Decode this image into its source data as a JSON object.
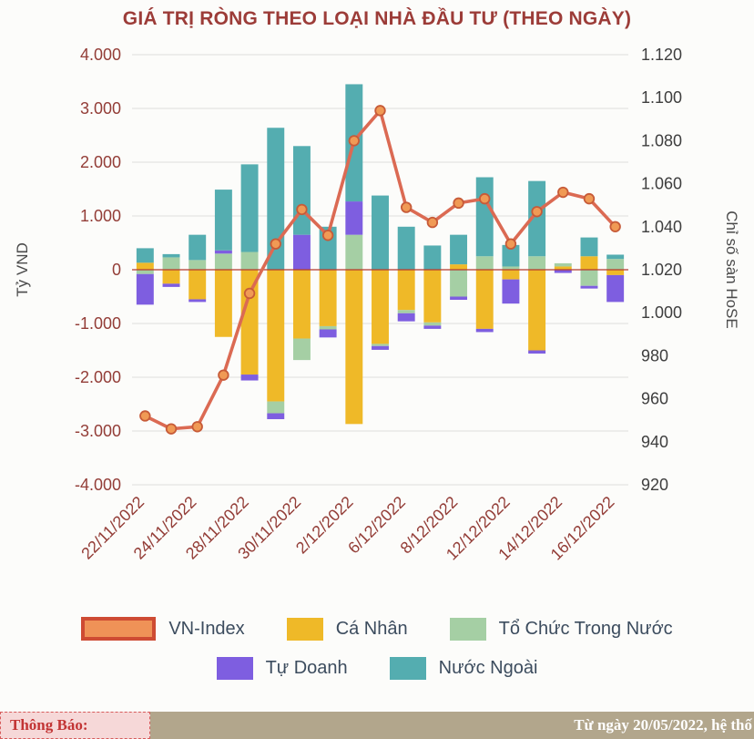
{
  "title": "GIÁ TRỊ RÒNG THEO LOẠI NHÀ ĐẦU TƯ (THEO NGÀY)",
  "legend": {
    "vn_index": "VN-Index",
    "ca_nhan": "Cá Nhân",
    "to_chuc": "Tổ Chức Trong Nước",
    "tu_doanh": "Tự Doanh",
    "nuoc_ngoai": "Nước Ngoài"
  },
  "ticker": {
    "label": "Thông Báo:",
    "message": "Từ ngày 20/05/2022, hệ thố",
    "label_bg": "#F6D8D8",
    "label_color": "#C23434",
    "message_bg": "#B2A68C",
    "message_color": "#FFFFFF"
  },
  "chart_data": {
    "type": "combo_stacked_bar_line",
    "title": "GIÁ TRỊ RÒNG THEO LOẠI NHÀ ĐẦU TƯ (THEO NGÀY)",
    "grid": true,
    "legend_position": "bottom",
    "dates": [
      "22/11/2022",
      "23/11/2022",
      "24/11/2022",
      "25/11/2022",
      "28/11/2022",
      "29/11/2022",
      "30/11/2022",
      "1/12/2022",
      "2/12/2022",
      "5/12/2022",
      "6/12/2022",
      "7/12/2022",
      "8/12/2022",
      "9/12/2022",
      "12/12/2022",
      "13/12/2022",
      "14/12/2022",
      "15/12/2022",
      "16/12/2022"
    ],
    "x_tick_labels": [
      "22/11/2022",
      "24/11/2022",
      "28/11/2022",
      "30/11/2022",
      "2/12/2022",
      "6/12/2022",
      "8/12/2022",
      "12/12/2022",
      "14/12/2022",
      "16/12/2022"
    ],
    "left_axis": {
      "label": "Tỷ VND",
      "min": -4000,
      "max": 4000,
      "step": 1000,
      "tick_labels": [
        "4.000",
        "3.000",
        "2.000",
        "1.000",
        "0",
        "-1.000",
        "-2.000",
        "-3.000",
        "-4.000"
      ]
    },
    "right_axis": {
      "label": "Chỉ số sàn HoSE",
      "min": 920,
      "max": 1120,
      "step": 20,
      "tick_labels": [
        "1.120",
        "1.100",
        "1.080",
        "1.060",
        "1.040",
        "1.020",
        "1.000",
        "980",
        "960",
        "940",
        "920"
      ]
    },
    "series": [
      {
        "key": "ca_nhan",
        "name": "Cá Nhân",
        "color": "#EFB928",
        "values": [
          130,
          -260,
          -550,
          -1250,
          -1950,
          -2450,
          -1280,
          -1050,
          -2870,
          -1380,
          -750,
          -980,
          100,
          -1100,
          -180,
          -1500,
          60,
          250,
          -100
        ]
      },
      {
        "key": "to_chuc",
        "name": "Tổ Chức Trong Nước",
        "color": "#A5CFA4",
        "values": [
          -80,
          230,
          180,
          300,
          330,
          -220,
          -400,
          -60,
          650,
          -40,
          -60,
          -60,
          -500,
          250,
          60,
          250,
          60,
          -300,
          200
        ]
      },
      {
        "key": "tu_doanh",
        "name": "Tự Doanh",
        "color": "#7E5EE0",
        "values": [
          -570,
          -60,
          -50,
          60,
          -110,
          -110,
          650,
          -150,
          620,
          -70,
          -150,
          -60,
          -60,
          -60,
          -450,
          -60,
          -60,
          -50,
          -500
        ]
      },
      {
        "key": "nuoc_ngoai",
        "name": "Nước Ngoài",
        "color": "#54ADB0",
        "values": [
          270,
          60,
          470,
          1130,
          1630,
          2640,
          1650,
          800,
          2180,
          1380,
          800,
          450,
          550,
          1470,
          400,
          1400,
          0,
          350,
          80
        ]
      }
    ],
    "line_series": {
      "key": "vn_index",
      "name": "VN-Index",
      "axis": "right",
      "color": "#DB6A53",
      "marker_fill": "#F09A55",
      "marker_stroke": "#C75B38",
      "swatch_fill": "#EF9257",
      "swatch_border": "#CE4B33",
      "values": [
        952,
        946,
        947,
        971,
        1009,
        1032,
        1048,
        1036,
        1080,
        1094,
        1049,
        1042,
        1051,
        1053,
        1032,
        1047,
        1056,
        1053,
        1040
      ]
    },
    "zero_line_color": "#B3392F",
    "gridline_color": "#DEDEDC"
  }
}
